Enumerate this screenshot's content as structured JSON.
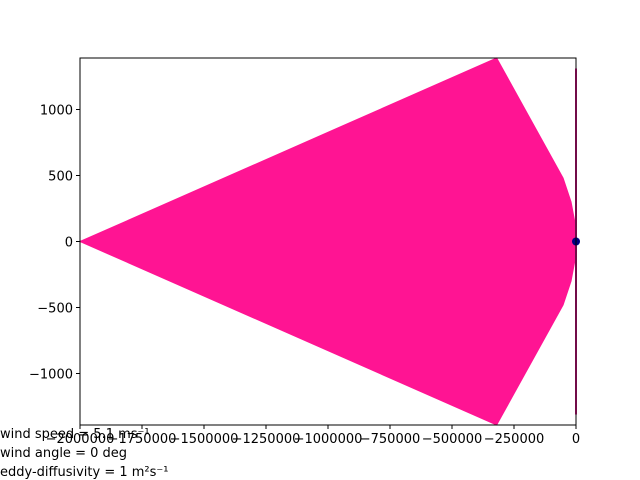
{
  "chart_data": {
    "type": "fill",
    "xlim": [
      -2000000,
      0
    ],
    "ylim": [
      -1390,
      1390
    ],
    "xticks": [
      {
        "value": -2000000,
        "label": "−2000000"
      },
      {
        "value": -1750000,
        "label": "−1750000"
      },
      {
        "value": -1500000,
        "label": "−1500000"
      },
      {
        "value": -1250000,
        "label": "−1250000"
      },
      {
        "value": -1000000,
        "label": "−1000000"
      },
      {
        "value": -750000,
        "label": "−750000"
      },
      {
        "value": -500000,
        "label": "−500000"
      },
      {
        "value": -250000,
        "label": "−250000"
      },
      0
    ],
    "yticks": [
      {
        "value": -1000,
        "label": "−1000"
      },
      {
        "value": -500,
        "label": "−500"
      },
      0,
      500,
      1000
    ],
    "fill": {
      "color": "#ff1493",
      "x": [
        -2000000,
        -320000,
        -52000,
        -20000,
        -5000,
        0,
        -5000,
        -20000,
        -52000,
        -320000
      ],
      "y": [
        0,
        1390,
        480,
        300,
        150,
        0,
        -150,
        -300,
        -480,
        -1390
      ]
    },
    "line": {
      "color": "#e3178f",
      "x": [
        0,
        0
      ],
      "y": [
        1310,
        -1310
      ]
    },
    "point": {
      "color": "#000080",
      "x": 0,
      "y": 0
    },
    "annotations": [
      "wind speed = 5.1 ms⁻¹",
      "wind angle = 0 deg",
      "eddy-diffusivity = 1 m²s⁻¹"
    ]
  }
}
